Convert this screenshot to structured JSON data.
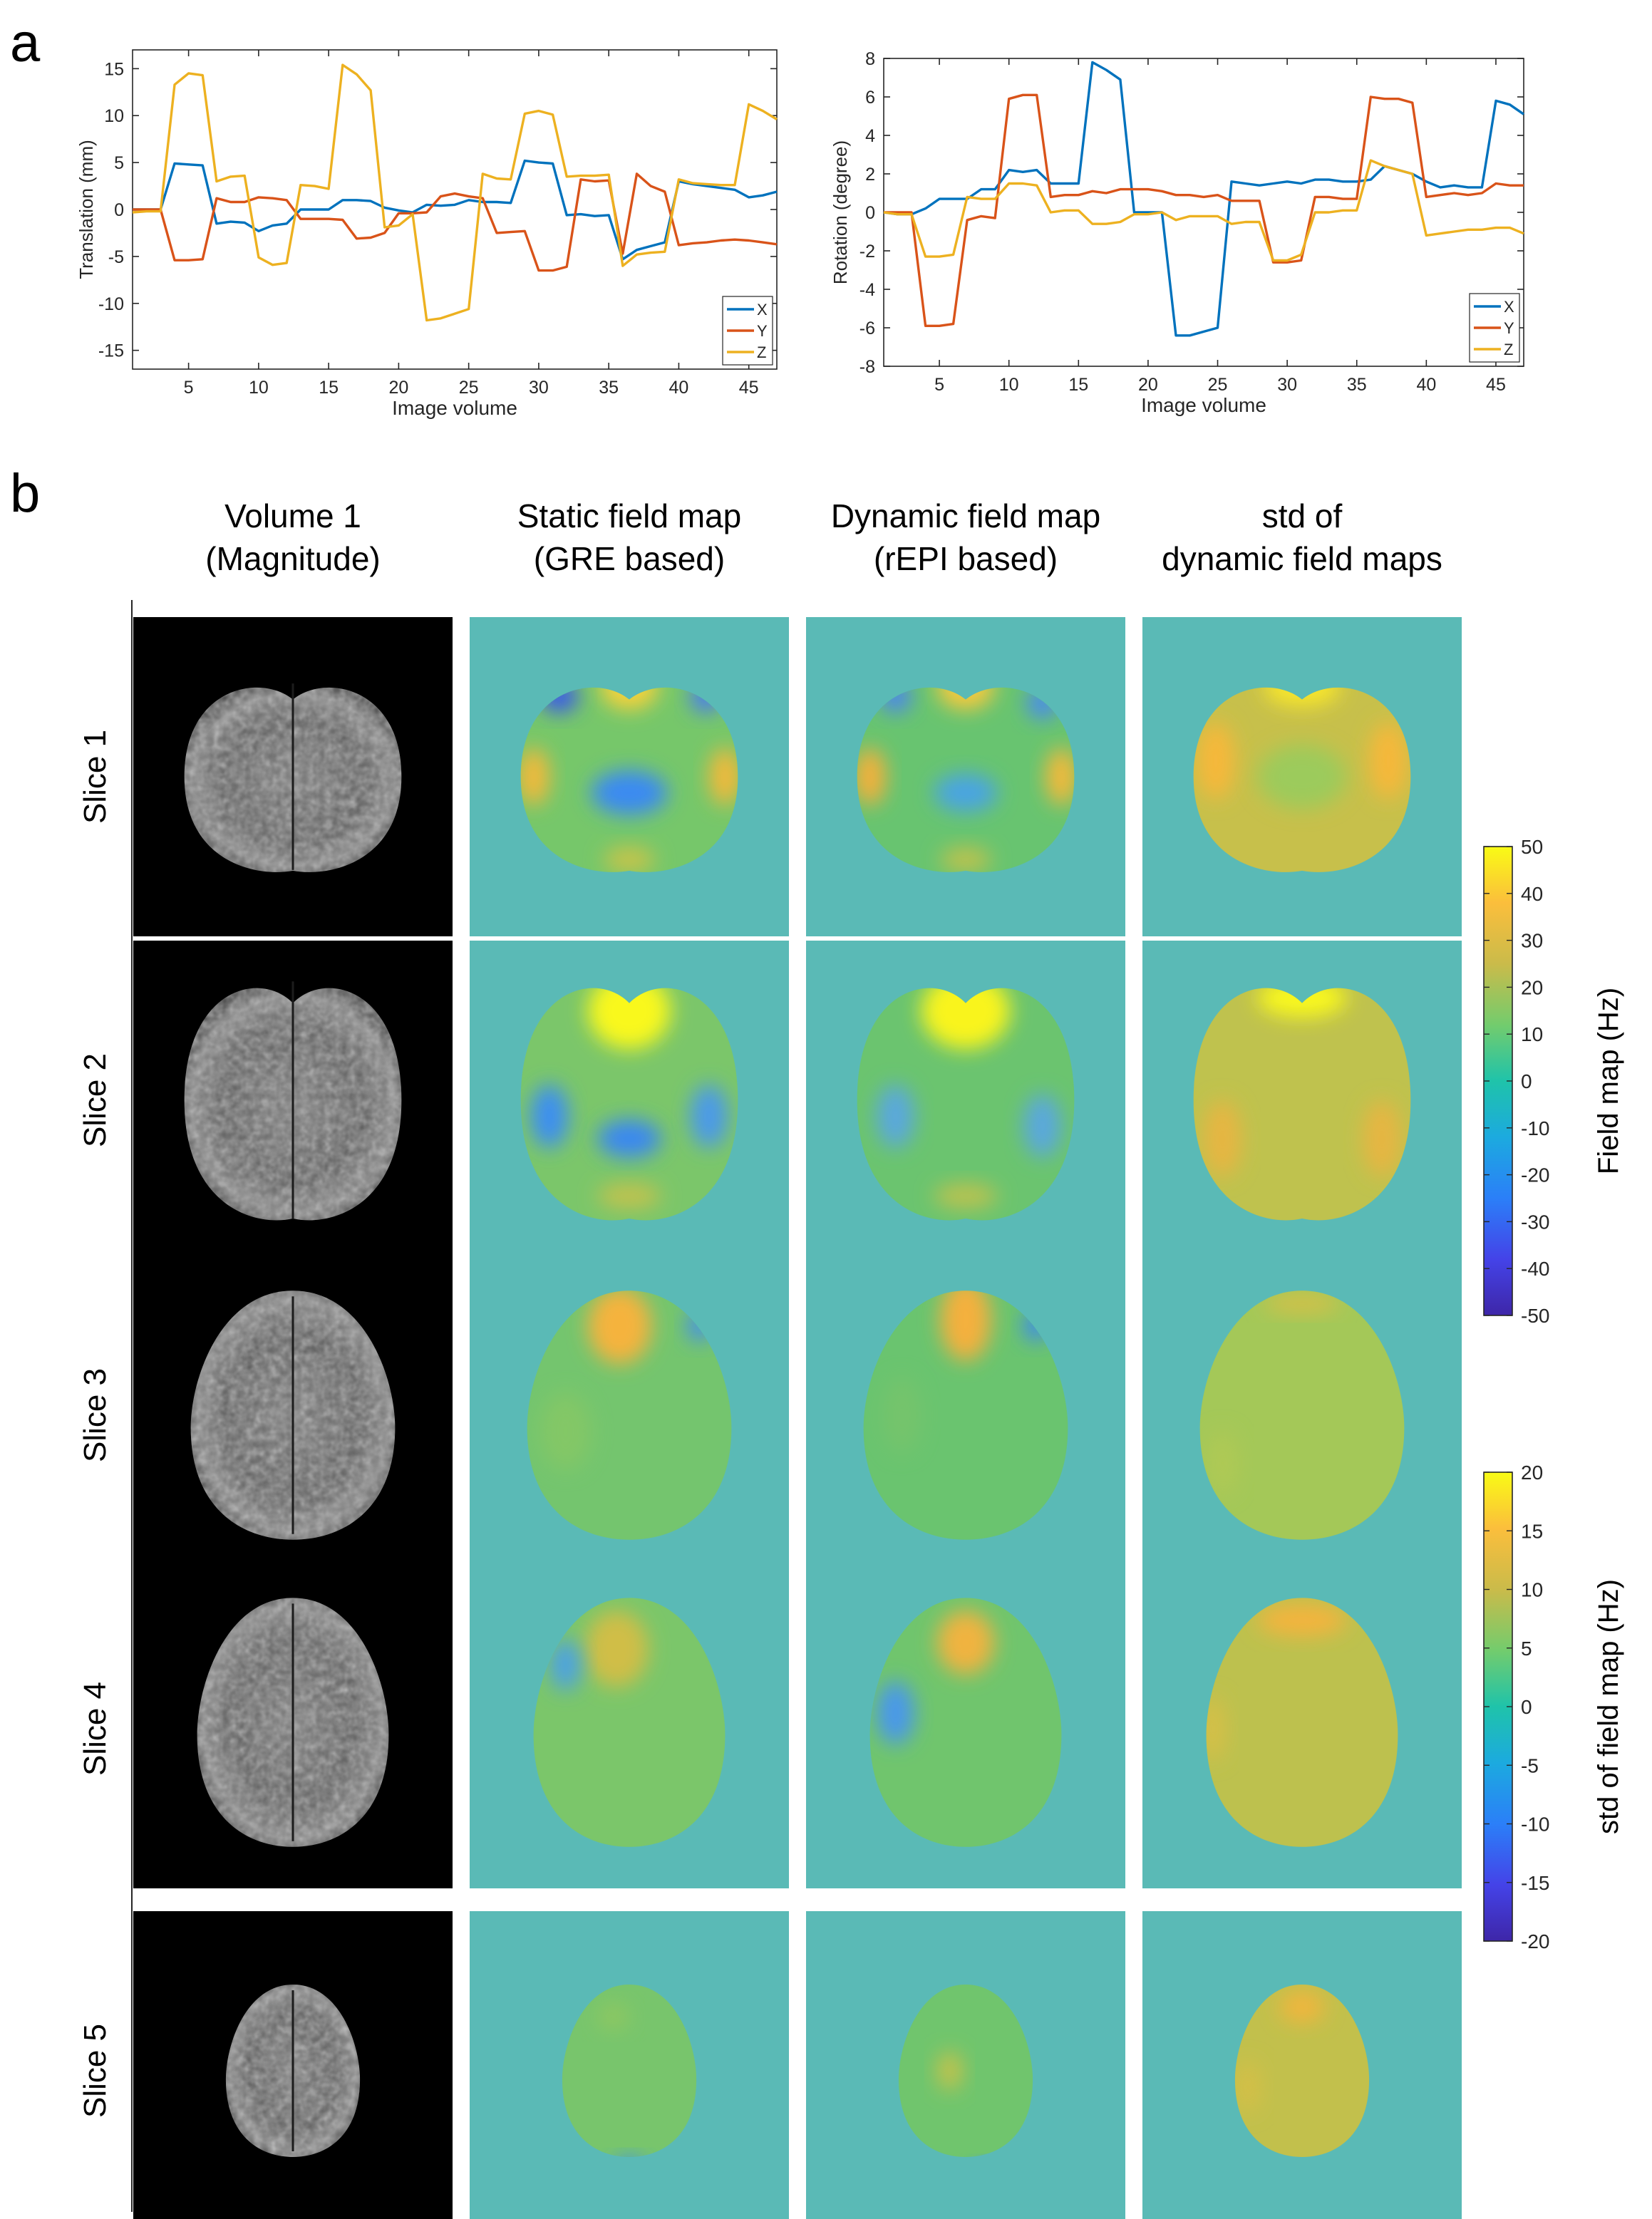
{
  "panel_labels": {
    "a": "a",
    "b": "b"
  },
  "chart_data": [
    {
      "type": "line",
      "ylabel": "Translation (mm)",
      "xlabel": "Image volume",
      "xlim": [
        1,
        47
      ],
      "ylim": [
        -17,
        17
      ],
      "xticks": [
        5,
        10,
        15,
        20,
        25,
        30,
        35,
        40,
        45
      ],
      "yticks": [
        -15,
        -10,
        -5,
        0,
        5,
        10,
        15
      ],
      "grid": false,
      "legend": "bottom-right",
      "x": [
        1,
        2,
        3,
        4,
        5,
        6,
        7,
        8,
        9,
        10,
        11,
        12,
        13,
        14,
        15,
        16,
        17,
        18,
        19,
        20,
        21,
        22,
        23,
        24,
        25,
        26,
        27,
        28,
        29,
        30,
        31,
        32,
        33,
        34,
        35,
        36,
        37,
        38,
        39,
        40,
        41,
        42,
        43,
        44,
        45,
        46,
        47
      ],
      "series": [
        {
          "name": "X",
          "color": "#0072BD",
          "values": [
            0,
            0,
            0,
            4.9,
            4.8,
            4.7,
            -1.5,
            -1.3,
            -1.4,
            -2.3,
            -1.7,
            -1.5,
            0,
            0,
            0,
            1,
            1,
            0.9,
            0.2,
            -0.1,
            -0.3,
            0.5,
            0.4,
            0.5,
            1,
            0.8,
            0.8,
            0.7,
            5.2,
            5,
            4.9,
            -0.6,
            -0.5,
            -0.7,
            -0.6,
            -5.3,
            -4.3,
            -3.9,
            -3.5,
            3,
            2.7,
            2.5,
            2.3,
            2.1,
            1.3,
            1.5,
            1.9
          ]
        },
        {
          "name": "Y",
          "color": "#D95319",
          "values": [
            0,
            0,
            0,
            -5.4,
            -5.4,
            -5.3,
            1.2,
            0.8,
            0.8,
            1.3,
            1.2,
            1,
            -1,
            -1,
            -1,
            -1.1,
            -3.1,
            -3,
            -2.5,
            -0.4,
            -0.4,
            -0.3,
            1.4,
            1.7,
            1.4,
            1.2,
            -2.5,
            -2.4,
            -2.3,
            -6.5,
            -6.5,
            -6.1,
            3.2,
            3,
            3.1,
            -4.7,
            3.8,
            2.5,
            1.9,
            -3.8,
            -3.6,
            -3.5,
            -3.3,
            -3.2,
            -3.3,
            -3.5,
            -3.7
          ]
        },
        {
          "name": "Z",
          "color": "#EDB120",
          "values": [
            -0.3,
            -0.2,
            -0.2,
            13.3,
            14.5,
            14.3,
            3,
            3.5,
            3.6,
            -5.1,
            -5.9,
            -5.7,
            2.6,
            2.5,
            2.2,
            15.4,
            14.4,
            12.7,
            -1.9,
            -1.7,
            -0.5,
            -11.8,
            -11.6,
            -11.1,
            -10.6,
            3.8,
            3.3,
            3.2,
            10.2,
            10.5,
            10.1,
            3.5,
            3.6,
            3.6,
            3.7,
            -6,
            -4.8,
            -4.6,
            -4.5,
            3.2,
            2.8,
            2.7,
            2.6,
            2.6,
            11.2,
            10.5,
            9.6
          ]
        }
      ]
    },
    {
      "type": "line",
      "ylabel": "Rotation (degree)",
      "xlabel": "Image volume",
      "xlim": [
        1,
        47
      ],
      "ylim": [
        -8,
        8
      ],
      "xticks": [
        5,
        10,
        15,
        20,
        25,
        30,
        35,
        40,
        45
      ],
      "yticks": [
        -8,
        -6,
        -4,
        -2,
        0,
        2,
        4,
        6,
        8
      ],
      "grid": false,
      "legend": "bottom-right",
      "x": [
        1,
        2,
        3,
        4,
        5,
        6,
        7,
        8,
        9,
        10,
        11,
        12,
        13,
        14,
        15,
        16,
        17,
        18,
        19,
        20,
        21,
        22,
        23,
        24,
        25,
        26,
        27,
        28,
        29,
        30,
        31,
        32,
        33,
        34,
        35,
        36,
        37,
        38,
        39,
        40,
        41,
        42,
        43,
        44,
        45,
        46,
        47
      ],
      "series": [
        {
          "name": "X",
          "color": "#0072BD",
          "values": [
            0,
            -0.1,
            -0.1,
            0.2,
            0.7,
            0.7,
            0.7,
            1.2,
            1.2,
            2.2,
            2.1,
            2.2,
            1.5,
            1.5,
            1.5,
            7.8,
            7.4,
            6.9,
            0,
            0,
            0,
            -6.4,
            -6.4,
            -6.2,
            -6,
            1.6,
            1.5,
            1.4,
            1.5,
            1.6,
            1.5,
            1.7,
            1.7,
            1.6,
            1.6,
            1.7,
            2.4,
            2.2,
            2,
            1.6,
            1.3,
            1.4,
            1.3,
            1.3,
            5.8,
            5.6,
            5.1
          ]
        },
        {
          "name": "Y",
          "color": "#D95319",
          "values": [
            0,
            0,
            0,
            -5.9,
            -5.9,
            -5.8,
            -0.4,
            -0.2,
            -0.3,
            5.9,
            6.1,
            6.1,
            0.8,
            0.9,
            0.9,
            1.1,
            1,
            1.2,
            1.2,
            1.2,
            1.1,
            0.9,
            0.9,
            0.8,
            0.9,
            0.6,
            0.6,
            0.6,
            -2.6,
            -2.6,
            -2.5,
            0.8,
            0.8,
            0.7,
            0.7,
            6,
            5.9,
            5.9,
            5.7,
            0.8,
            0.9,
            1,
            0.9,
            1,
            1.5,
            1.4,
            1.4
          ]
        },
        {
          "name": "Z",
          "color": "#EDB120",
          "values": [
            0,
            -0.1,
            -0.1,
            -2.3,
            -2.3,
            -2.2,
            0.8,
            0.7,
            0.7,
            1.5,
            1.5,
            1.4,
            0,
            0.1,
            0.1,
            -0.6,
            -0.6,
            -0.5,
            -0.1,
            -0.1,
            0,
            -0.4,
            -0.2,
            -0.2,
            -0.2,
            -0.6,
            -0.5,
            -0.5,
            -2.5,
            -2.5,
            -2.2,
            0,
            0,
            0.1,
            0.1,
            2.7,
            2.4,
            2.2,
            2,
            -1.2,
            -1.1,
            -1,
            -0.9,
            -0.9,
            -0.8,
            -0.8,
            -1.1
          ]
        }
      ]
    },
    {
      "type": "heatmap",
      "columns": [
        [
          "Volume 1",
          "(Magnitude)"
        ],
        [
          "Static field map",
          "(GRE based)"
        ],
        [
          "Dynamic field map",
          "(rEPI based)"
        ],
        [
          "std of",
          "dynamic field maps"
        ]
      ],
      "rows": [
        "Slice 1",
        "Slice 2",
        "Slice 3",
        "Slice 4",
        "Slice 5"
      ],
      "colorbars": [
        {
          "label": "Field map (Hz)",
          "range": [
            -50,
            50
          ],
          "ticks": [
            50,
            40,
            30,
            20,
            10,
            0,
            -10,
            -20,
            -30,
            -40,
            -50
          ]
        },
        {
          "label": "std of field map (Hz)",
          "range": [
            -20,
            20
          ],
          "ticks": [
            20,
            15,
            10,
            5,
            0,
            -5,
            -10,
            -15,
            -20
          ]
        }
      ]
    }
  ]
}
